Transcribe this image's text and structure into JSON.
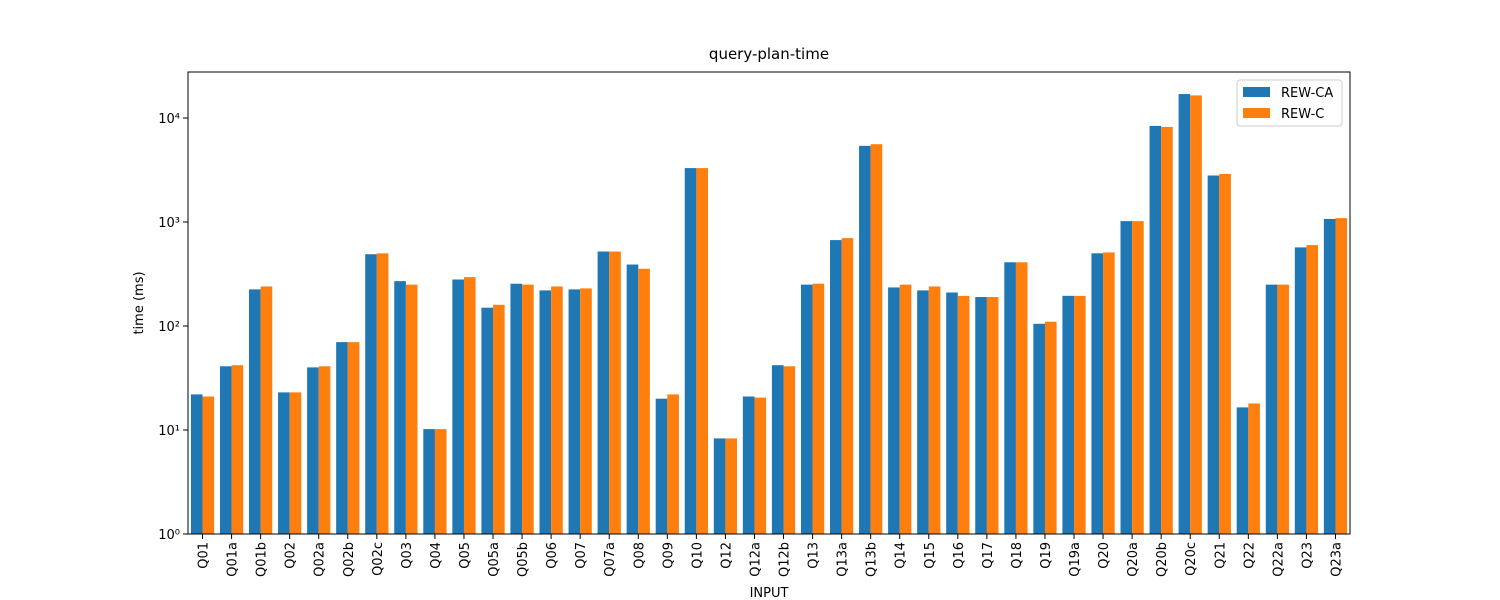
{
  "chart_data": {
    "type": "bar",
    "title": "query-plan-time",
    "x_label": "INPUT",
    "y_label": "time (ms)",
    "log_scale": true,
    "legend_position": "upper right",
    "categories": [
      "Q01",
      "Q01a",
      "Q01b",
      "Q02",
      "Q02a",
      "Q02b",
      "Q02c",
      "Q03",
      "Q04",
      "Q05",
      "Q05a",
      "Q05b",
      "Q06",
      "Q07",
      "Q07a",
      "Q08",
      "Q09",
      "Q10",
      "Q12",
      "Q12a",
      "Q12b",
      "Q13",
      "Q13a",
      "Q13b",
      "Q14",
      "Q15",
      "Q16",
      "Q17",
      "Q18",
      "Q19",
      "Q19a",
      "Q20",
      "Q20a",
      "Q20b",
      "Q20c",
      "Q21",
      "Q22",
      "Q22a",
      "Q23",
      "Q23a"
    ],
    "series": [
      {
        "name": "REW-CA",
        "color": "#1f77b4",
        "values": [
          22,
          41,
          225,
          23,
          40,
          70,
          490,
          270,
          10.2,
          280,
          150,
          255,
          220,
          225,
          520,
          390,
          20,
          3300,
          8.3,
          21,
          42,
          250,
          670,
          5400,
          235,
          220,
          210,
          190,
          410,
          105,
          195,
          500,
          1020,
          8400,
          17000,
          2800,
          16.5,
          250,
          570,
          1070
        ]
      },
      {
        "name": "REW-C",
        "color": "#ff7f0e",
        "values": [
          21,
          42,
          240,
          23,
          41,
          70,
          500,
          250,
          10.2,
          295,
          160,
          250,
          240,
          230,
          520,
          355,
          22,
          3300,
          8.3,
          20.5,
          41,
          255,
          700,
          5600,
          250,
          240,
          195,
          190,
          410,
          110,
          195,
          510,
          1020,
          8200,
          16500,
          2900,
          18,
          250,
          600,
          1090
        ]
      }
    ],
    "ylim": [
      1,
      27700
    ],
    "yticks": [
      {
        "value": 1,
        "label": "10⁰"
      },
      {
        "value": 10,
        "label": "10¹"
      },
      {
        "value": 100,
        "label": "10²"
      },
      {
        "value": 1000,
        "label": "10³"
      },
      {
        "value": 10000,
        "label": "10⁴"
      }
    ]
  }
}
